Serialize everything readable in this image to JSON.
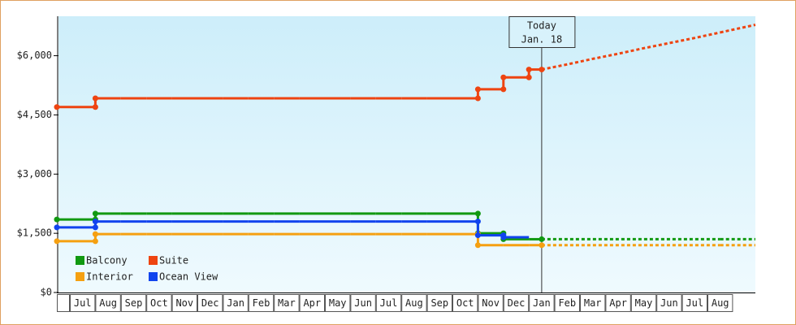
{
  "chart_data": {
    "type": "step-line",
    "ylim": [
      0,
      7000
    ],
    "yticks": [
      {
        "value": 0,
        "label": "$0"
      },
      {
        "value": 1500,
        "label": "$1,500"
      },
      {
        "value": 3000,
        "label": "$3,000"
      },
      {
        "value": 4500,
        "label": "$4,500"
      },
      {
        "value": 6000,
        "label": "$6,000"
      }
    ],
    "categories": [
      null,
      "Jul",
      "Aug",
      "Sep",
      "Oct",
      "Nov",
      "Dec",
      "Jan",
      "Feb",
      "Mar",
      "Apr",
      "May",
      "Jun",
      "Jul",
      "Aug",
      "Sep",
      "Oct",
      "Nov",
      "Dec",
      "Jan",
      "Feb",
      "Mar",
      "Apr",
      "May",
      "Jun",
      "Jul",
      "Aug"
    ],
    "annotation": {
      "label": "Today",
      "date": "Jan. 18"
    },
    "legend": "bottom-left",
    "series": [
      {
        "name": "Balcony",
        "color": "#119911",
        "values": [
          1850,
          1850,
          2000,
          2000,
          2000,
          2000,
          2000,
          2000,
          2000,
          2000,
          2000,
          2000,
          2000,
          2000,
          2000,
          2000,
          2000,
          1500,
          1350,
          1350,
          null,
          null,
          null,
          null,
          null,
          null,
          null
        ],
        "projected": [
          null,
          null,
          null,
          null,
          null,
          null,
          null,
          null,
          null,
          null,
          null,
          null,
          null,
          null,
          null,
          null,
          null,
          null,
          null,
          1350,
          1350,
          1350,
          1350,
          1350,
          1350,
          1350,
          1350
        ]
      },
      {
        "name": "Suite",
        "color": "#ee4411",
        "values": [
          4700,
          4700,
          4920,
          4920,
          4920,
          4920,
          4920,
          4920,
          4920,
          4920,
          4920,
          4920,
          4920,
          4920,
          4920,
          4920,
          4920,
          5150,
          5450,
          5650,
          null,
          null,
          null,
          null,
          null,
          null,
          null
        ],
        "projected": [
          null,
          null,
          null,
          null,
          null,
          null,
          null,
          null,
          null,
          null,
          null,
          null,
          null,
          null,
          null,
          null,
          null,
          null,
          null,
          5650,
          5780,
          5920,
          6050,
          6190,
          6320,
          6450,
          6590
        ]
      },
      {
        "name": "Interior",
        "color": "#f5a011",
        "values": [
          1300,
          1300,
          1480,
          1480,
          1480,
          1480,
          1480,
          1480,
          1480,
          1480,
          1480,
          1480,
          1480,
          1480,
          1480,
          1480,
          1480,
          1200,
          1200,
          1200,
          null,
          null,
          null,
          null,
          null,
          null,
          null
        ],
        "projected": [
          null,
          null,
          null,
          null,
          null,
          null,
          null,
          null,
          null,
          null,
          null,
          null,
          null,
          null,
          null,
          null,
          null,
          null,
          null,
          1200,
          1200,
          1200,
          1200,
          1200,
          1200,
          1200,
          1200
        ]
      },
      {
        "name": "Ocean View",
        "color": "#1144ee",
        "values": [
          1650,
          1650,
          1800,
          1800,
          1800,
          1800,
          1800,
          1800,
          1800,
          1800,
          1800,
          1800,
          1800,
          1800,
          1800,
          1800,
          1800,
          1450,
          1400,
          null,
          null,
          null,
          null,
          null,
          null,
          null,
          null
        ],
        "projected": [
          null,
          null,
          null,
          null,
          null,
          null,
          null,
          null,
          null,
          null,
          null,
          null,
          null,
          null,
          null,
          null,
          null,
          null,
          null,
          null,
          null,
          null,
          null,
          null,
          null,
          null,
          null
        ]
      }
    ]
  }
}
